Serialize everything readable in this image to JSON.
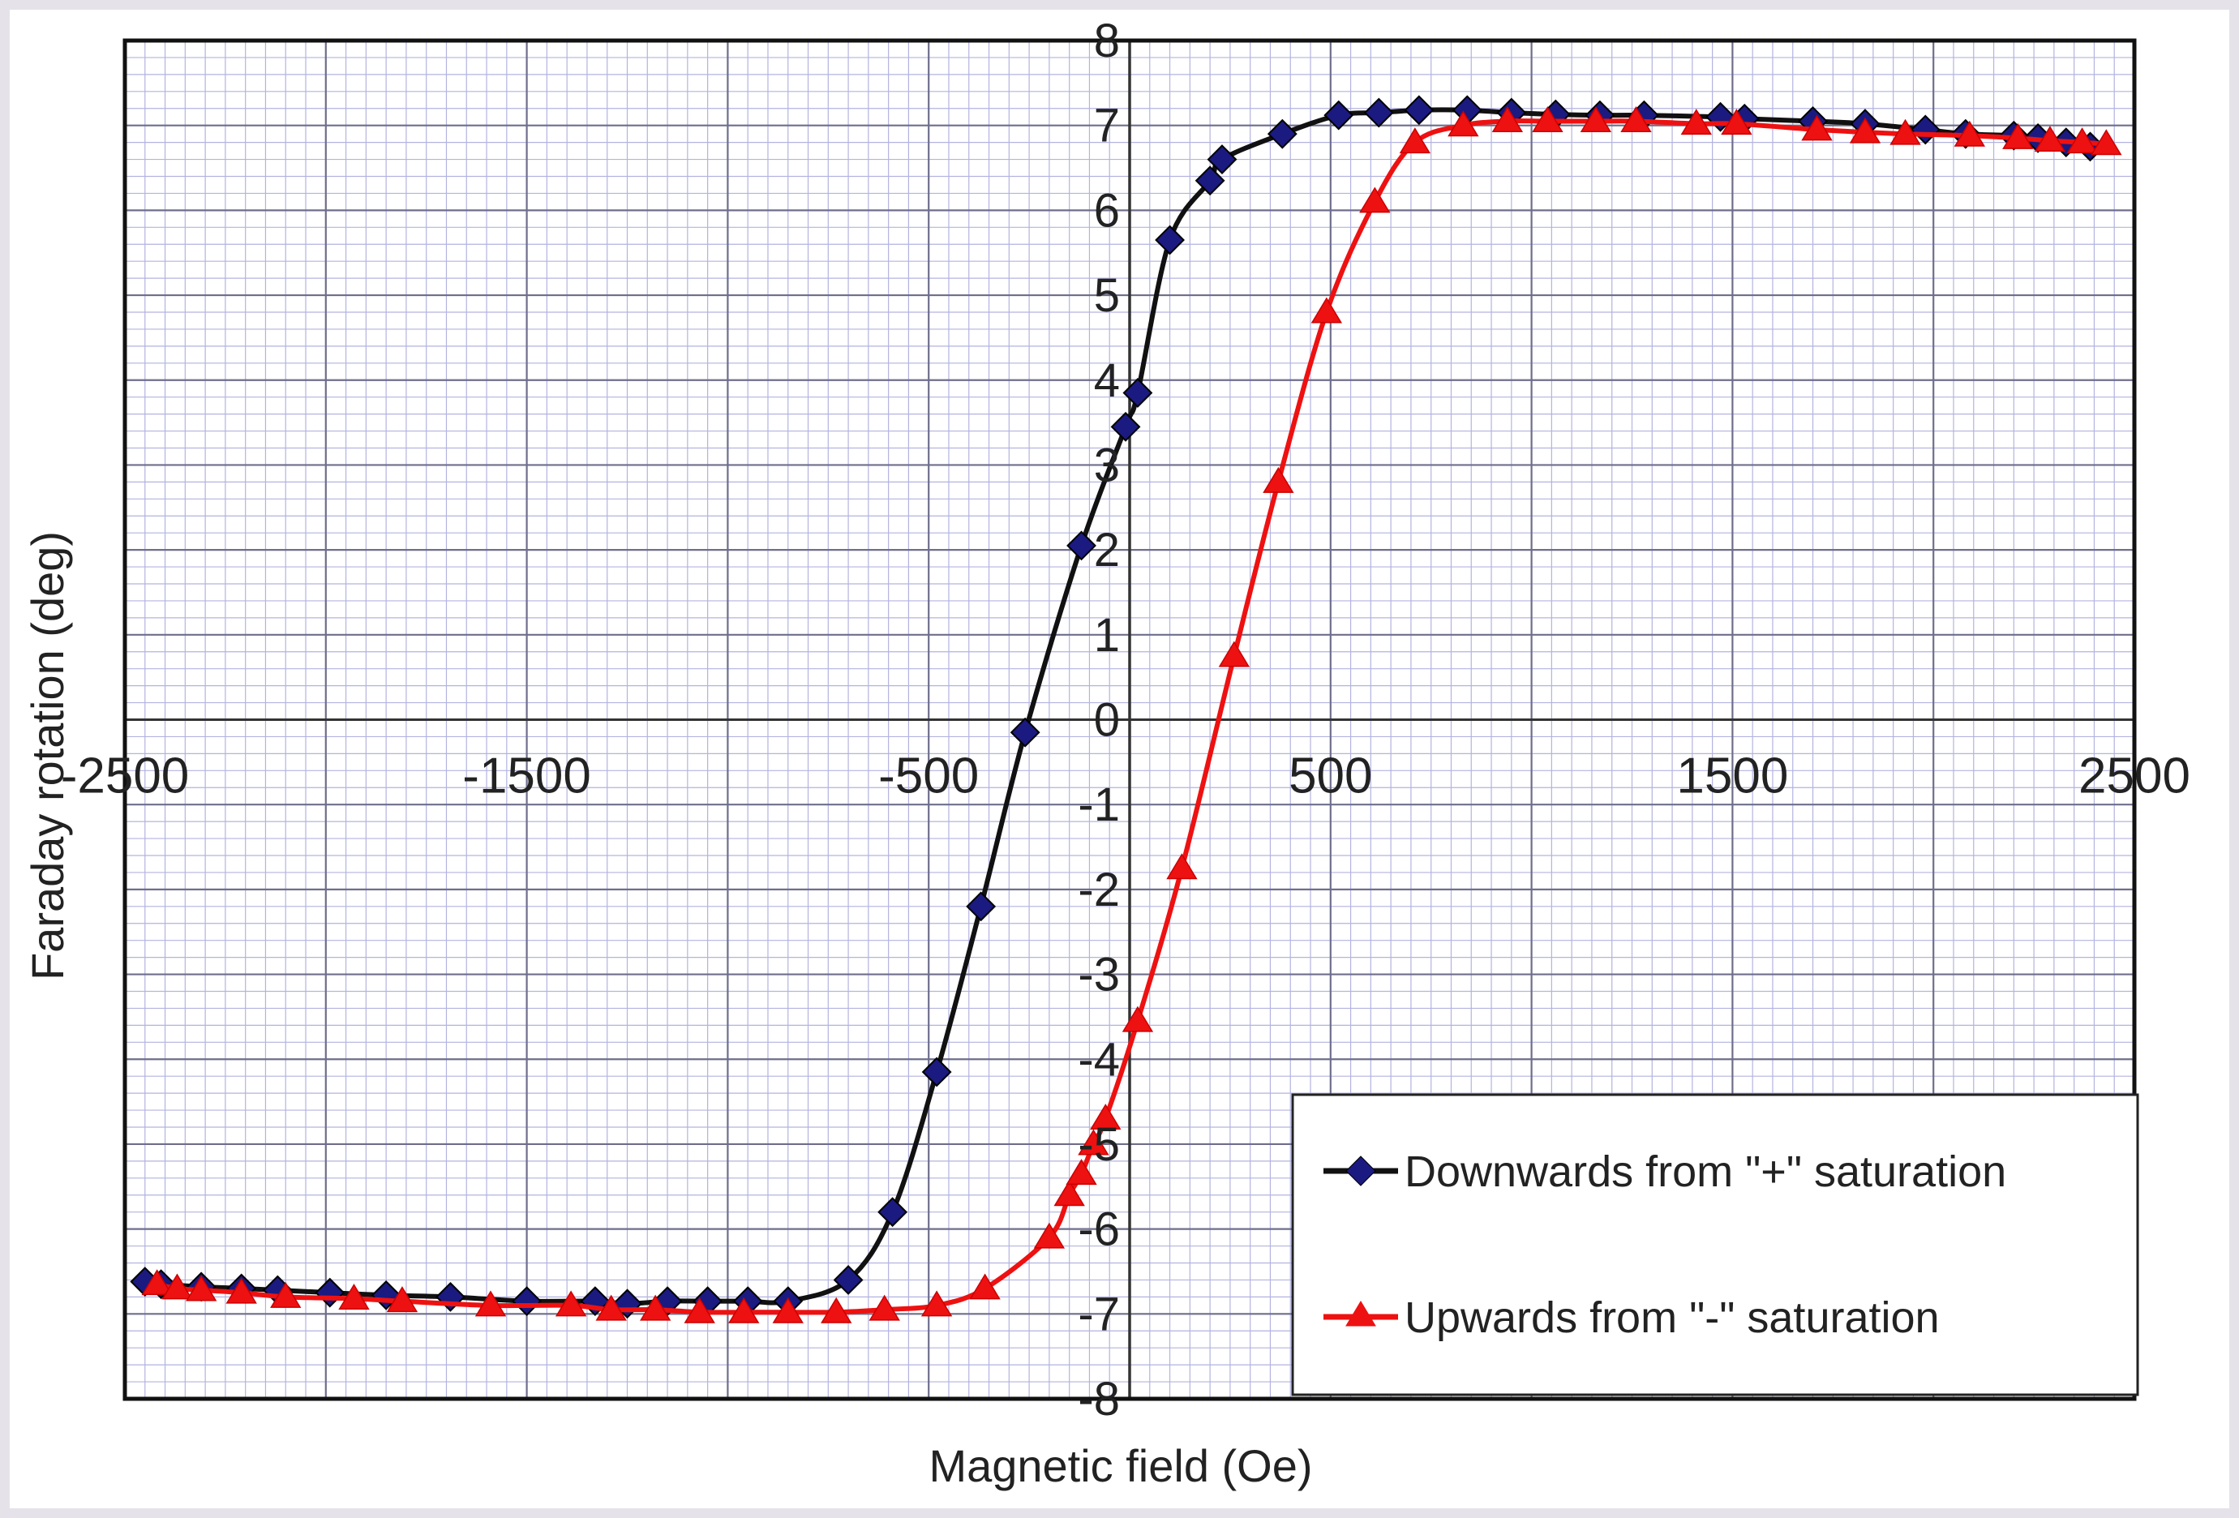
{
  "chart_data": {
    "type": "line",
    "title": "",
    "xlabel": "Magnetic field (Oe)",
    "ylabel": "Faraday rotation (deg)",
    "xlim": [
      -2500,
      2500
    ],
    "ylim": [
      -8,
      8
    ],
    "x_ticks": [
      -2500,
      -1500,
      -500,
      500,
      1500,
      2500
    ],
    "x_tick_labels": [
      "-2500",
      "-1500",
      "-500",
      "500",
      "1500",
      "2500"
    ],
    "y_ticks": [
      -8,
      -7,
      -6,
      -5,
      -4,
      -3,
      -2,
      -1,
      0,
      1,
      2,
      3,
      4,
      5,
      6,
      7,
      8
    ],
    "y_tick_labels": [
      "-8",
      "-7",
      "-6",
      "-5",
      "-4",
      "-3",
      "-2",
      "-1",
      "0",
      "1",
      "2",
      "3",
      "4",
      "5",
      "6",
      "7",
      "8"
    ],
    "grid": true,
    "legend_position": "bottom-right",
    "series": [
      {
        "name": "Downwards from \"+\" saturation",
        "color": "#111111",
        "marker": "diamond",
        "marker_color": "#1a1a80",
        "points": [
          [
            2390,
            6.75
          ],
          [
            2330,
            6.8
          ],
          [
            2260,
            6.85
          ],
          [
            2200,
            6.88
          ],
          [
            2080,
            6.9
          ],
          [
            1980,
            6.95
          ],
          [
            1830,
            7.02
          ],
          [
            1700,
            7.05
          ],
          [
            1530,
            7.08
          ],
          [
            1470,
            7.1
          ],
          [
            1280,
            7.12
          ],
          [
            1170,
            7.12
          ],
          [
            1060,
            7.13
          ],
          [
            950,
            7.15
          ],
          [
            840,
            7.18
          ],
          [
            720,
            7.18
          ],
          [
            620,
            7.15
          ],
          [
            520,
            7.12
          ],
          [
            380,
            6.9
          ],
          [
            230,
            6.6
          ],
          [
            200,
            6.35
          ],
          [
            100,
            5.65
          ],
          [
            20,
            3.85
          ],
          [
            -10,
            3.45
          ],
          [
            -120,
            2.05
          ],
          [
            -260,
            -0.15
          ],
          [
            -370,
            -2.2
          ],
          [
            -480,
            -4.15
          ],
          [
            -590,
            -5.8
          ],
          [
            -700,
            -6.6
          ],
          [
            -850,
            -6.85
          ],
          [
            -950,
            -6.85
          ],
          [
            -1050,
            -6.85
          ],
          [
            -1150,
            -6.85
          ],
          [
            -1250,
            -6.88
          ],
          [
            -1330,
            -6.85
          ],
          [
            -1500,
            -6.85
          ],
          [
            -1690,
            -6.8
          ],
          [
            -1850,
            -6.78
          ],
          [
            -1990,
            -6.75
          ],
          [
            -2120,
            -6.72
          ],
          [
            -2210,
            -6.7
          ],
          [
            -2310,
            -6.68
          ],
          [
            -2410,
            -6.65
          ],
          [
            -2450,
            -6.62
          ]
        ]
      },
      {
        "name": "Upwards from \"-\" saturation",
        "color": "#ee1111",
        "marker": "triangle",
        "marker_color": "#ee1111",
        "points": [
          [
            -2420,
            -6.65
          ],
          [
            -2370,
            -6.7
          ],
          [
            -2310,
            -6.72
          ],
          [
            -2210,
            -6.75
          ],
          [
            -2100,
            -6.8
          ],
          [
            -1930,
            -6.82
          ],
          [
            -1810,
            -6.85
          ],
          [
            -1590,
            -6.9
          ],
          [
            -1390,
            -6.9
          ],
          [
            -1290,
            -6.95
          ],
          [
            -1180,
            -6.95
          ],
          [
            -1070,
            -6.98
          ],
          [
            -960,
            -6.98
          ],
          [
            -850,
            -6.98
          ],
          [
            -730,
            -6.98
          ],
          [
            -610,
            -6.95
          ],
          [
            -480,
            -6.9
          ],
          [
            -360,
            -6.7
          ],
          [
            -200,
            -6.1
          ],
          [
            -150,
            -5.6
          ],
          [
            -120,
            -5.35
          ],
          [
            -90,
            -5.0
          ],
          [
            -60,
            -4.7
          ],
          [
            20,
            -3.55
          ],
          [
            130,
            -1.75
          ],
          [
            260,
            0.75
          ],
          [
            370,
            2.8
          ],
          [
            490,
            4.8
          ],
          [
            610,
            6.1
          ],
          [
            710,
            6.8
          ],
          [
            830,
            7.0
          ],
          [
            940,
            7.05
          ],
          [
            1040,
            7.05
          ],
          [
            1160,
            7.05
          ],
          [
            1260,
            7.05
          ],
          [
            1410,
            7.02
          ],
          [
            1510,
            7.02
          ],
          [
            1710,
            6.95
          ],
          [
            1830,
            6.92
          ],
          [
            1930,
            6.9
          ],
          [
            2090,
            6.88
          ],
          [
            2210,
            6.85
          ],
          [
            2290,
            6.82
          ],
          [
            2370,
            6.8
          ],
          [
            2430,
            6.78
          ]
        ]
      }
    ]
  }
}
